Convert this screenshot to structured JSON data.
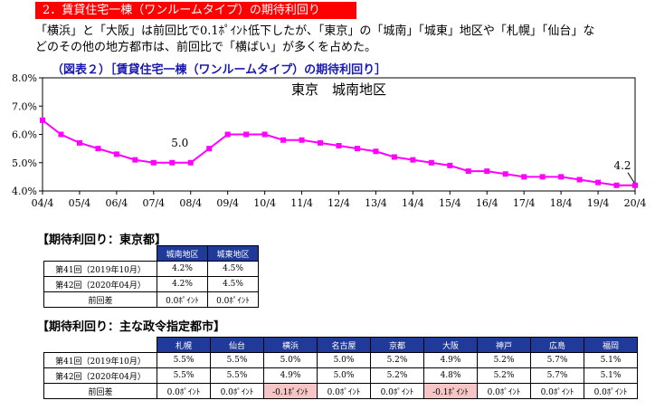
{
  "section_title": "2．賃貸住宅一棟（ワンルームタイプ）の期待利回り",
  "intro_lines": [
    "「横浜」と「大阪」は前回比で0.1ﾎﾟｲﾝﾄ低下したが、「東京」の「城南」「城東」地区や「札幌」「仙台」な",
    "どのその他の地方都市は、前回比で「横ばい」が多くを占めた。"
  ],
  "figure_caption": "（図表２）［賃貸住宅一棟（ワンルームタイプ）の期待利回り］",
  "chart_data": {
    "type": "line",
    "title": "東京　城南地区",
    "x_ticks": [
      "04/4",
      "05/4",
      "06/4",
      "07/4",
      "08/4",
      "09/4",
      "10/4",
      "11/4",
      "12/4",
      "13/4",
      "14/4",
      "15/4",
      "16/4",
      "17/4",
      "18/4",
      "19/4",
      "20/4"
    ],
    "y_ticks": [
      "4.0%",
      "5.0%",
      "6.0%",
      "7.0%",
      "8.0%"
    ],
    "ylim": [
      4.0,
      8.0
    ],
    "series": [
      {
        "color": "#ff00ff",
        "values": [
          6.5,
          6.0,
          5.7,
          5.5,
          5.3,
          5.1,
          5.0,
          5.0,
          5.0,
          5.5,
          6.0,
          6.0,
          6.0,
          5.8,
          5.8,
          5.7,
          5.6,
          5.5,
          5.4,
          5.2,
          5.1,
          5.0,
          4.9,
          4.7,
          4.7,
          4.6,
          4.5,
          4.5,
          4.5,
          4.4,
          4.3,
          4.2,
          4.2
        ]
      }
    ],
    "annotations": [
      {
        "label": "5.0",
        "index": 8
      },
      {
        "label": "4.2",
        "index": 32
      }
    ]
  },
  "tokyo": {
    "caption": "【期待利回り：東京都】",
    "headers": [
      "城南地区",
      "城東地区"
    ],
    "rows": [
      {
        "label": "第41回（2019年10月）",
        "values": [
          "4.2%",
          "4.5%"
        ]
      },
      {
        "label": "第42回（2020年04月）",
        "values": [
          "4.2%",
          "4.5%"
        ]
      },
      {
        "label": "前回差",
        "values": [
          "0.0ﾎﾟｲﾝﾄ",
          "0.0ﾎﾟｲﾝﾄ"
        ]
      }
    ]
  },
  "cities": {
    "caption": "【期待利回り：主な政令指定都市】",
    "headers": [
      "札幌",
      "仙台",
      "横浜",
      "名古屋",
      "京都",
      "大阪",
      "神戸",
      "広島",
      "福岡"
    ],
    "rows": [
      {
        "label": "第41回（2019年10月）",
        "values": [
          "5.5%",
          "5.5%",
          "5.0%",
          "5.0%",
          "5.2%",
          "4.9%",
          "5.2%",
          "5.7%",
          "5.1%"
        ]
      },
      {
        "label": "第42回（2020年04月）",
        "values": [
          "5.5%",
          "5.5%",
          "4.9%",
          "5.0%",
          "5.2%",
          "4.8%",
          "5.2%",
          "5.7%",
          "5.1%"
        ]
      },
      {
        "label": "前回差",
        "values": [
          "0.0ﾎﾟｲﾝﾄ",
          "0.0ﾎﾟｲﾝﾄ",
          "-0.1ﾎﾟｲﾝﾄ",
          "0.0ﾎﾟｲﾝﾄ",
          "0.0ﾎﾟｲﾝﾄ",
          "-0.1ﾎﾟｲﾝﾄ",
          "0.0ﾎﾟｲﾝﾄ",
          "0.0ﾎﾟｲﾝﾄ",
          "0.0ﾎﾟｲﾝﾄ"
        ]
      }
    ],
    "negative_color": "#f6c6c6"
  }
}
